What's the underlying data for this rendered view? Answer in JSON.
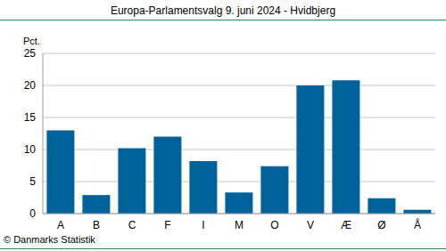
{
  "chart_data": {
    "type": "bar",
    "title": "Europa-Parlamentsvalg 9. juni 2024 - Hvidbjerg",
    "y_label": "Pct.",
    "annotation": "© Danmarks Statistik",
    "categories": [
      "A",
      "B",
      "C",
      "F",
      "I",
      "M",
      "O",
      "V",
      "Æ",
      "Ø",
      "Å"
    ],
    "values": [
      13.0,
      2.9,
      10.2,
      12.0,
      8.2,
      3.3,
      7.4,
      20.0,
      20.8,
      2.4,
      0.6
    ],
    "color": "#00629b",
    "ylim": [
      0,
      25
    ],
    "yticks": [
      0,
      5,
      10,
      15,
      20,
      25
    ],
    "grid": true
  }
}
